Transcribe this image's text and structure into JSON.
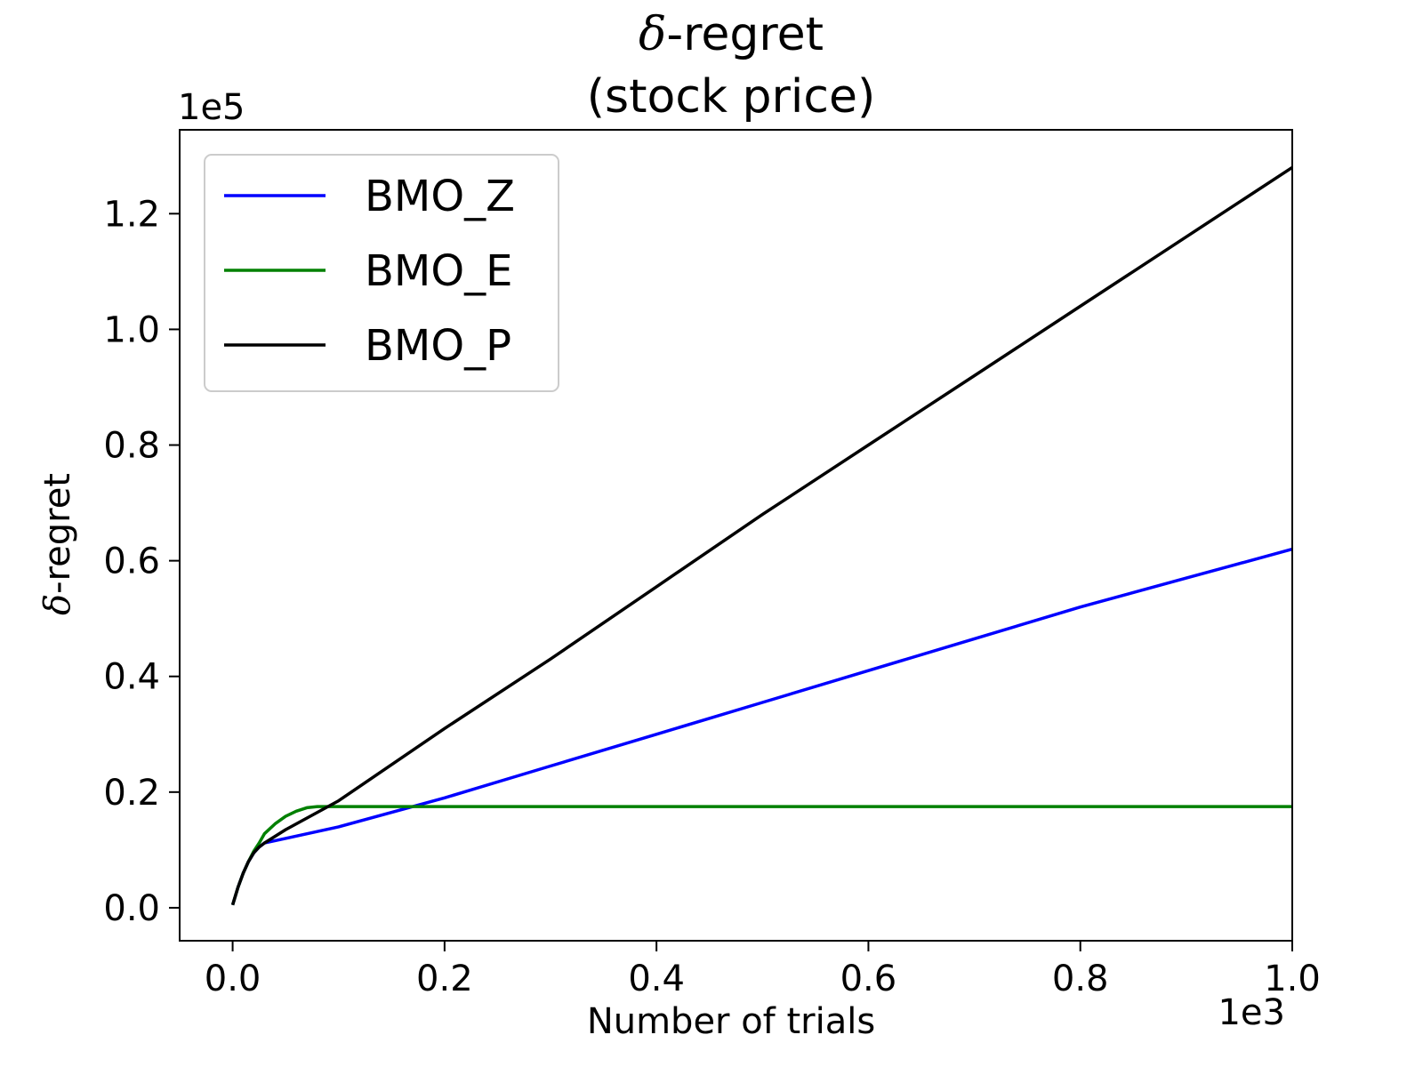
{
  "chart_data": {
    "type": "line",
    "title_symbol": "δ",
    "title_suffix": "-regret",
    "subtitle": "(stock price)",
    "xlabel": "Number of trials",
    "ylabel_symbol": "δ",
    "ylabel_suffix": "-regret",
    "x_offset_label": "1e3",
    "y_offset_label": "1e5",
    "xlim": [
      -0.05,
      1.0
    ],
    "ylim": [
      -0.057,
      1.345
    ],
    "xticks": [
      0.0,
      0.2,
      0.4,
      0.6,
      0.8,
      1.0
    ],
    "xtick_labels": [
      "0.0",
      "0.2",
      "0.4",
      "0.6",
      "0.8",
      "1.0"
    ],
    "yticks": [
      0.0,
      0.2,
      0.4,
      0.6,
      0.8,
      1.0,
      1.2
    ],
    "ytick_labels": [
      "0.0",
      "0.2",
      "0.4",
      "0.6",
      "0.8",
      "1.0",
      "1.2"
    ],
    "grid": false,
    "legend_position": "top-left",
    "series": [
      {
        "name": "BMO_Z",
        "color": "#0000ff",
        "x": [
          0.0,
          0.005,
          0.01,
          0.015,
          0.02,
          0.025,
          0.03,
          0.05,
          0.1,
          0.2,
          0.3,
          0.4,
          0.5,
          0.6,
          0.7,
          0.8,
          0.9,
          1.0
        ],
        "y": [
          0.005,
          0.035,
          0.06,
          0.08,
          0.095,
          0.105,
          0.112,
          0.12,
          0.14,
          0.19,
          0.245,
          0.3,
          0.355,
          0.41,
          0.465,
          0.52,
          0.57,
          0.62
        ]
      },
      {
        "name": "BMO_E",
        "color": "#008000",
        "x": [
          0.0,
          0.005,
          0.01,
          0.015,
          0.02,
          0.025,
          0.03,
          0.04,
          0.05,
          0.06,
          0.07,
          0.08,
          0.1,
          0.2,
          0.4,
          0.6,
          0.8,
          1.0
        ],
        "y": [
          0.005,
          0.035,
          0.06,
          0.08,
          0.098,
          0.112,
          0.128,
          0.145,
          0.158,
          0.167,
          0.173,
          0.175,
          0.175,
          0.175,
          0.175,
          0.175,
          0.175,
          0.175
        ]
      },
      {
        "name": "BMO_P",
        "color": "#000000",
        "x": [
          0.0,
          0.005,
          0.01,
          0.015,
          0.02,
          0.025,
          0.03,
          0.05,
          0.1,
          0.2,
          0.3,
          0.4,
          0.5,
          0.6,
          0.7,
          0.8,
          0.9,
          1.0
        ],
        "y": [
          0.005,
          0.035,
          0.06,
          0.08,
          0.095,
          0.105,
          0.112,
          0.135,
          0.185,
          0.31,
          0.43,
          0.555,
          0.68,
          0.8,
          0.92,
          1.04,
          1.16,
          1.28
        ]
      }
    ]
  }
}
